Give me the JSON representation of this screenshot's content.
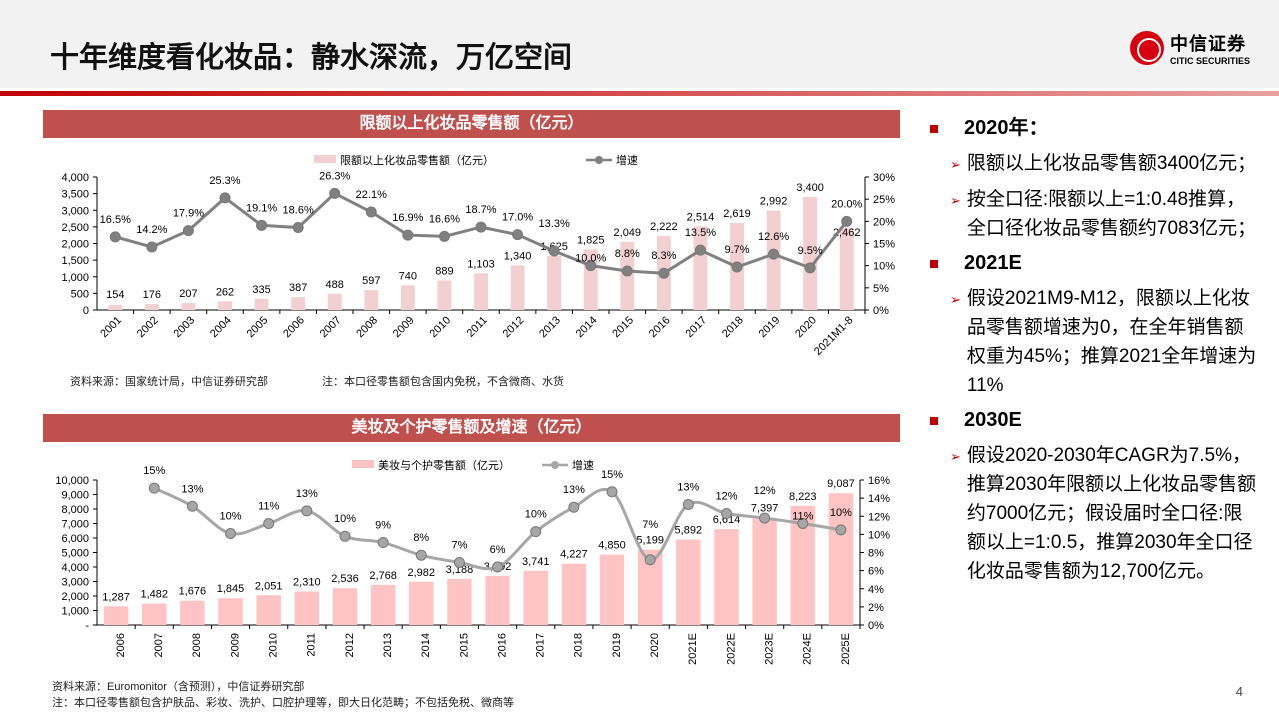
{
  "header": {
    "title": "十年维度看化妆品：静水深流，万亿空间",
    "logo_cn": "中信证券",
    "logo_en": "CITIC SECURITIES"
  },
  "chart1_title": "限额以上化妆品零售额（亿元）",
  "chart1_source": "资料来源：国家统计局，中信证券研究部",
  "chart1_note": "注：本口径零售额包含国内免税，不含微商、水货",
  "chart2_title": "美妆及个护零售额及增速（亿元）",
  "chart2_source": "资料来源：Euromonitor（含预测），中信证券研究部",
  "chart2_note": "注：本口径零售额包含护肤品、彩妆、洗护、口腔护理等，即大日化范畴；不包括免税、微商等",
  "chart_data": [
    {
      "type": "bar+line",
      "title": "限额以上化妆品零售额（亿元）",
      "categories": [
        "2001",
        "2002",
        "2003",
        "2004",
        "2005",
        "2006",
        "2007",
        "2008",
        "2009",
        "2010",
        "2011",
        "2012",
        "2013",
        "2014",
        "2015",
        "2016",
        "2017",
        "2018",
        "2019",
        "2020",
        "2021M1-8"
      ],
      "series": [
        {
          "name": "限额以上化妆品零售额（亿元）",
          "type": "bar",
          "axis": "left",
          "values": [
            154,
            176,
            207,
            262,
            335,
            387,
            488,
            597,
            740,
            889,
            1103,
            1340,
            1625,
            1825,
            2049,
            2222,
            2514,
            2619,
            2992,
            3400,
            2462
          ],
          "labels": [
            "154",
            "176",
            "207",
            "262",
            "335",
            "387",
            "488",
            "597",
            "740",
            "889",
            "1,103",
            "1,340",
            "1,625",
            "1,825",
            "2,049",
            "2,222",
            "2,514",
            "2,619",
            "2,992",
            "3,400",
            "2,462"
          ],
          "color": "#f2cfd0"
        },
        {
          "name": "增速",
          "type": "line",
          "axis": "right",
          "values": [
            16.5,
            14.2,
            17.9,
            25.3,
            19.1,
            18.6,
            26.3,
            22.1,
            16.9,
            16.6,
            18.7,
            17.0,
            13.3,
            10.0,
            8.8,
            8.3,
            13.5,
            9.7,
            12.6,
            9.5,
            20.0
          ],
          "labels": [
            "16.5%",
            "14.2%",
            "17.9%",
            "25.3%",
            "19.1%",
            "18.6%",
            "26.3%",
            "22.1%",
            "16.9%",
            "16.6%",
            "18.7%",
            "17.0%",
            "13.3%",
            "10.0%",
            "8.8%",
            "8.3%",
            "13.5%",
            "9.7%",
            "12.6%",
            "9.5%",
            "20.0%"
          ],
          "color": "#808080"
        }
      ],
      "yleft": {
        "range": [
          0,
          4000
        ],
        "ticks": [
          "0",
          "500",
          "1,000",
          "1,500",
          "2,000",
          "2,500",
          "3,000",
          "3,500",
          "4,000"
        ]
      },
      "yright": {
        "range": [
          0,
          30
        ],
        "ticks": [
          "0%",
          "5%",
          "10%",
          "15%",
          "20%",
          "25%",
          "30%"
        ]
      },
      "legend": "top-center"
    },
    {
      "type": "bar+line",
      "title": "美妆及个护零售额及增速（亿元）",
      "categories": [
        "2006",
        "2007",
        "2008",
        "2009",
        "2010",
        "2011",
        "2012",
        "2013",
        "2014",
        "2015",
        "2016",
        "2017",
        "2018",
        "2019",
        "2020",
        "2021E",
        "2022E",
        "2023E",
        "2024E",
        "2025E"
      ],
      "series": [
        {
          "name": "美妆与个护零售额（亿元）",
          "type": "bar",
          "axis": "left",
          "values": [
            1287,
            1482,
            1676,
            1845,
            2051,
            2310,
            2536,
            2768,
            2982,
            3188,
            3392,
            3741,
            4227,
            4850,
            5199,
            5892,
            6614,
            7397,
            8223,
            9087
          ],
          "labels": [
            "1,287",
            "1,482",
            "1,676",
            "1,845",
            "2,051",
            "2,310",
            "2,536",
            "2,768",
            "2,982",
            "3,188",
            "3,392",
            "3,741",
            "4,227",
            "4,850",
            "5,199",
            "5,892",
            "6,614",
            "7,397",
            "8,223",
            "9,087"
          ],
          "color": "#ffc3c3"
        },
        {
          "name": "增速",
          "type": "line",
          "axis": "right",
          "values": [
            null,
            15.1,
            13.1,
            10.1,
            11.2,
            12.6,
            9.8,
            9.1,
            7.7,
            6.9,
            6.4,
            10.3,
            13.0,
            14.7,
            7.2,
            13.3,
            12.3,
            11.8,
            11.2,
            10.5
          ],
          "labels": [
            "",
            "15%",
            "13%",
            "10%",
            "11%",
            "13%",
            "10%",
            "9%",
            "8%",
            "7%",
            "6%",
            "10%",
            "13%",
            "15%",
            "7%",
            "13%",
            "12%",
            "12%",
            "11%",
            "10%"
          ],
          "color": "#a6a6a6"
        }
      ],
      "yleft": {
        "range": [
          0,
          10000
        ],
        "ticks": [
          "-",
          "1,000",
          "2,000",
          "3,000",
          "4,000",
          "5,000",
          "6,000",
          "7,000",
          "8,000",
          "9,000",
          "10,000"
        ]
      },
      "yright": {
        "range": [
          0,
          16
        ],
        "ticks": [
          "0%",
          "2%",
          "4%",
          "6%",
          "8%",
          "10%",
          "12%",
          "14%",
          "16%"
        ]
      },
      "legend": "top-center"
    }
  ],
  "panel": {
    "sections": [
      {
        "heading": "2020年：",
        "items": [
          "限额以上化妆品零售额3400亿元；",
          "按全口径:限额以上=1:0.48推算，全口径化妆品零售额约7083亿元；"
        ]
      },
      {
        "heading": "2021E",
        "items": [
          "假设2021M9-M12，限额以上化妆品零售额增速为0，在全年销售额权重为45%；推算2021全年增速为11%"
        ]
      },
      {
        "heading": "2030E",
        "items": [
          "假设2020-2030年CAGR为7.5%，推算2030年限额以上化妆品零售额约7000亿元；假设届时全口径:限额以上=1:0.5，推算2030年全口径化妆品零售额为12,700亿元。"
        ]
      }
    ]
  },
  "page_number": "4"
}
